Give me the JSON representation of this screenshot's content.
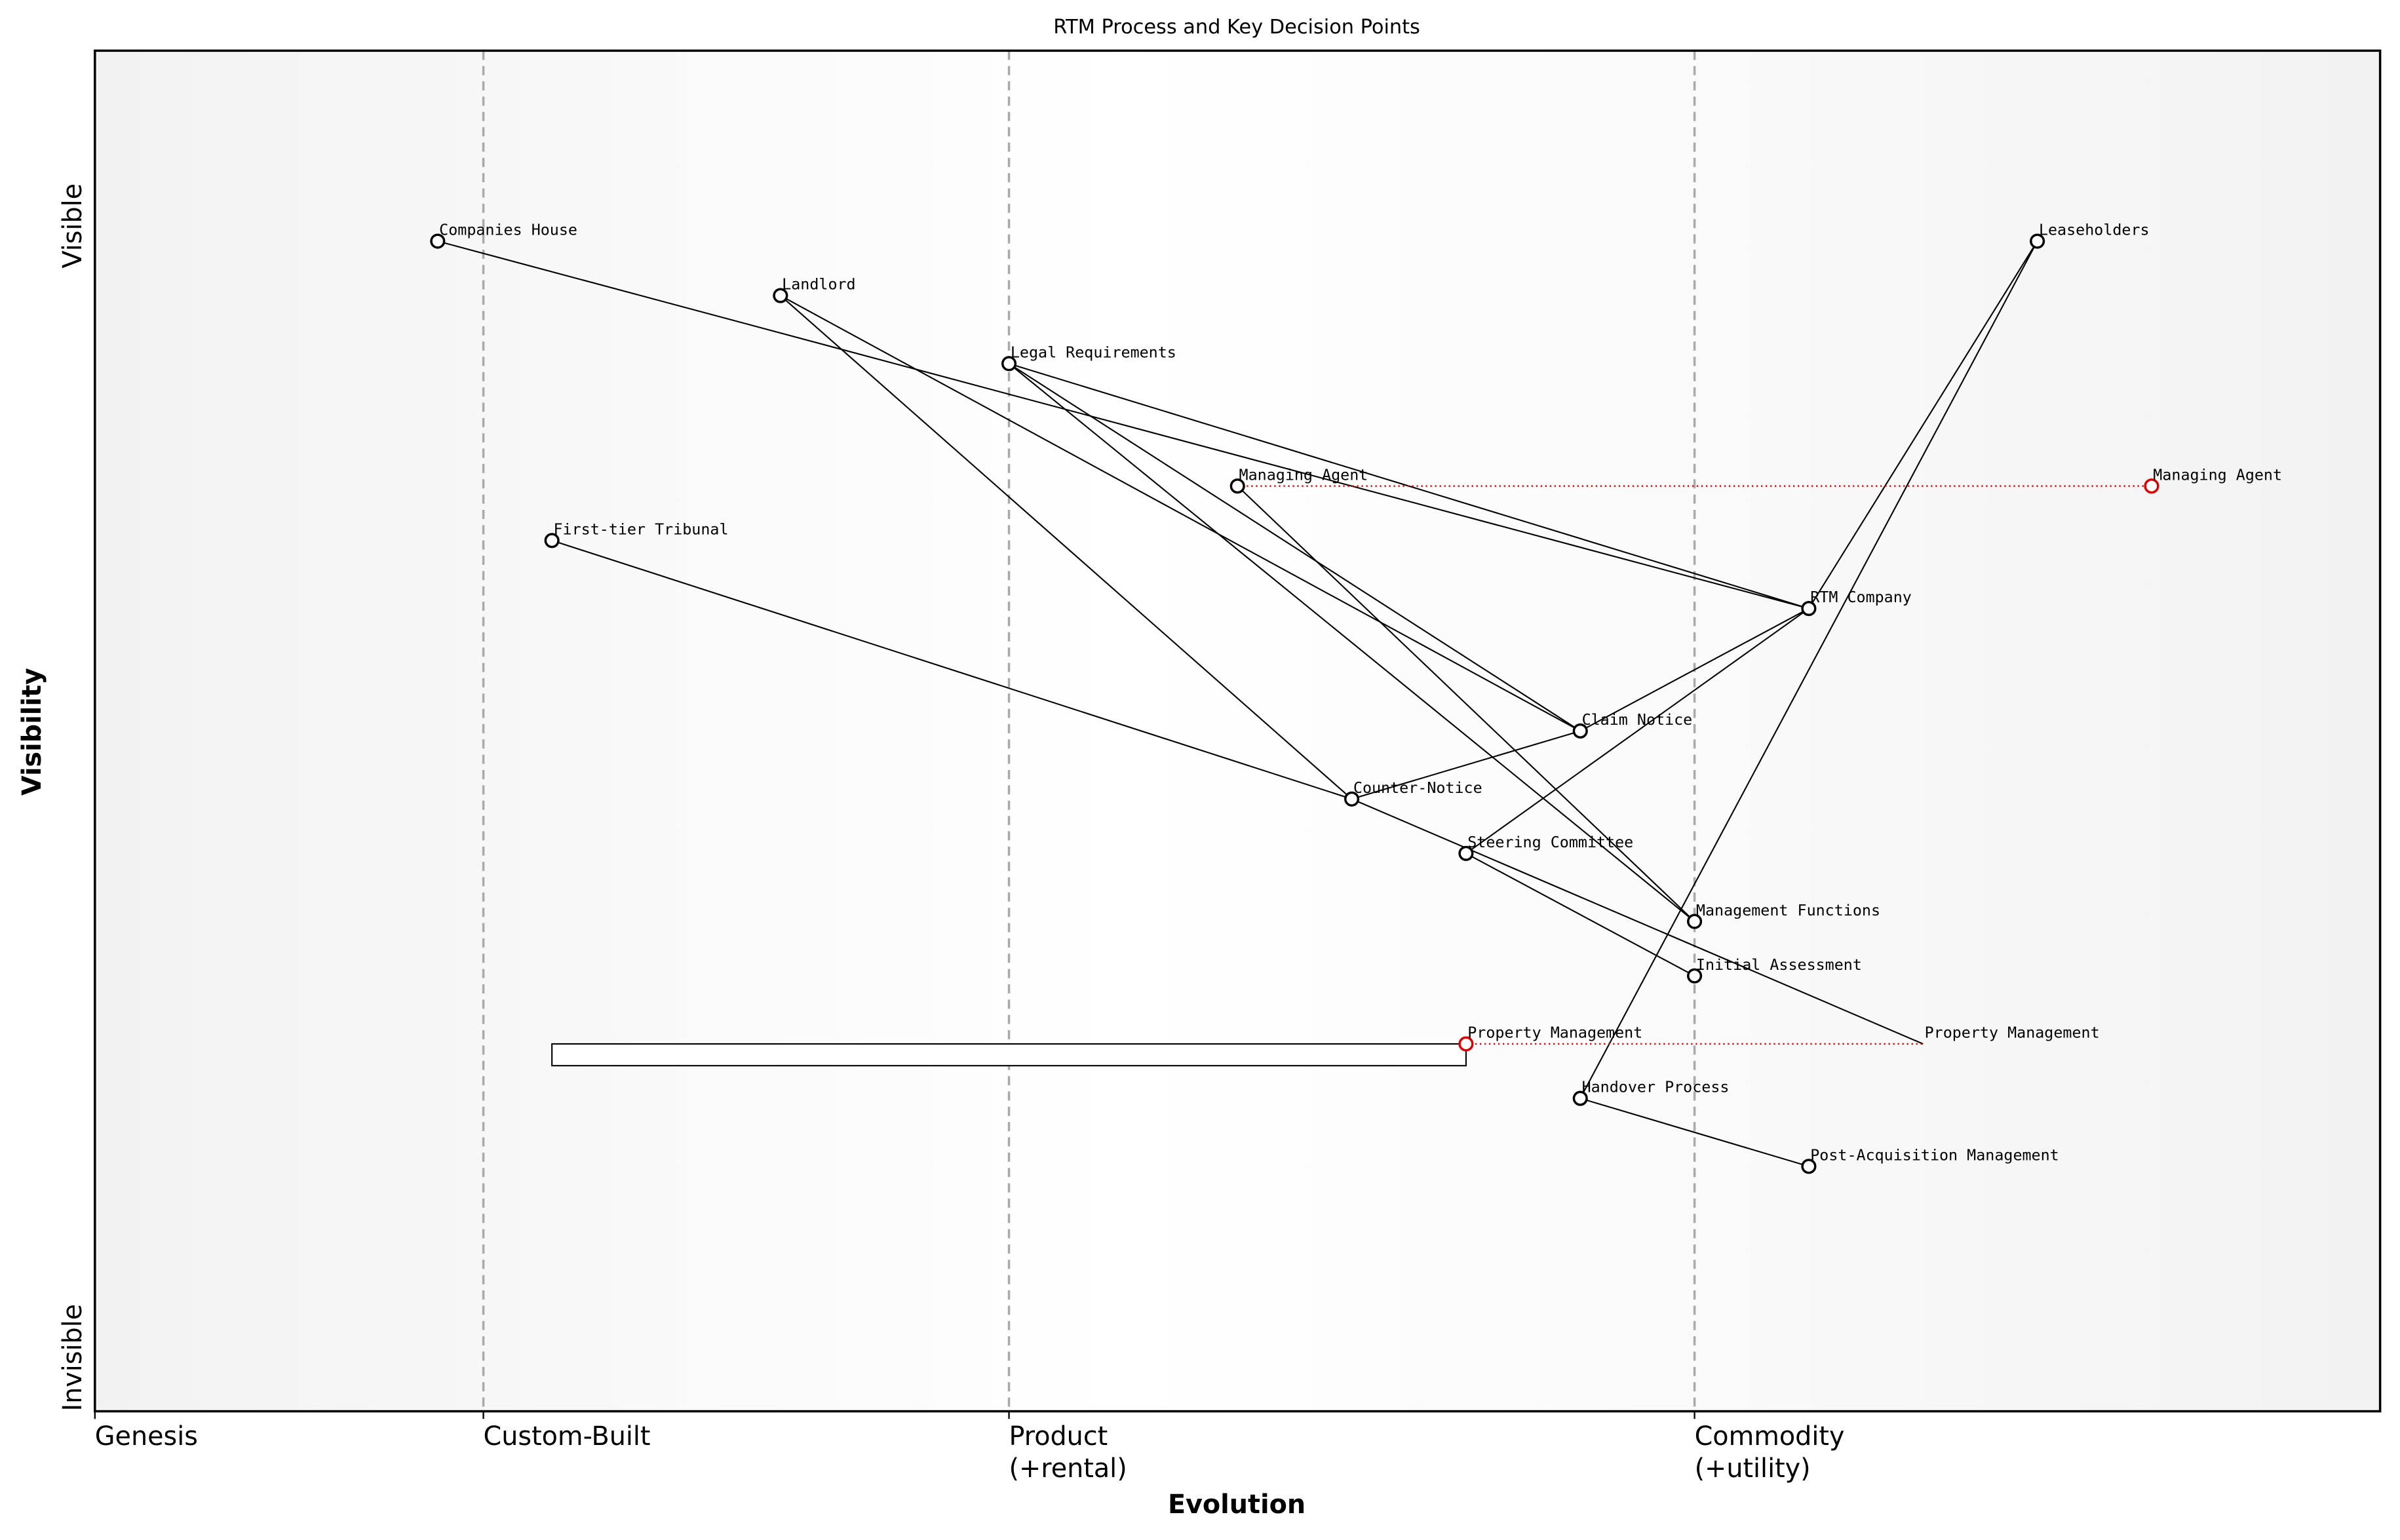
{
  "chart_data": {
    "type": "wardley",
    "title": "RTM Process and Key Decision Points",
    "xlabel": "Evolution",
    "ylabel": "Visibility",
    "xlim": [
      0,
      1
    ],
    "ylim": [
      0,
      1
    ],
    "xticks": [
      {
        "value": 0,
        "label": "Genesis"
      },
      {
        "value": 0.17,
        "label": "Custom-Built"
      },
      {
        "value": 0.4,
        "label": "Product\n(+rental)"
      },
      {
        "value": 0.7,
        "label": "Commodity\n(+utility)"
      }
    ],
    "yticks": [
      {
        "value": 0,
        "label": "Invisible"
      },
      {
        "value": 0.84,
        "label": "Visible"
      }
    ],
    "stage_lines": [
      0.17,
      0.4,
      0.7
    ],
    "components": [
      {
        "name": "Companies House",
        "x": 0.15,
        "y": 0.86,
        "color": "#000000"
      },
      {
        "name": "Landlord",
        "x": 0.3,
        "y": 0.82,
        "color": "#000000"
      },
      {
        "name": "Legal Requirements",
        "x": 0.4,
        "y": 0.77,
        "color": "#000000"
      },
      {
        "name": "Managing Agent",
        "x": 0.5,
        "y": 0.68,
        "color": "#000000"
      },
      {
        "name": "First-tier Tribunal",
        "x": 0.2,
        "y": 0.64,
        "color": "#000000"
      },
      {
        "name": "RTM Company",
        "x": 0.75,
        "y": 0.59,
        "color": "#000000"
      },
      {
        "name": "Claim Notice",
        "x": 0.65,
        "y": 0.5,
        "color": "#000000"
      },
      {
        "name": "Counter-Notice",
        "x": 0.55,
        "y": 0.45,
        "color": "#000000"
      },
      {
        "name": "Steering Committee",
        "x": 0.6,
        "y": 0.41,
        "color": "#000000"
      },
      {
        "name": "Management Functions",
        "x": 0.7,
        "y": 0.36,
        "color": "#000000"
      },
      {
        "name": "Initial Assessment",
        "x": 0.7,
        "y": 0.32,
        "color": "#000000"
      },
      {
        "name": "Property Management",
        "x": 0.6,
        "y": 0.27,
        "color": "#dd0000"
      },
      {
        "name": "Handover Process",
        "x": 0.65,
        "y": 0.23,
        "color": "#000000"
      },
      {
        "name": "Post-Acquisition Management",
        "x": 0.75,
        "y": 0.18,
        "color": "#000000"
      },
      {
        "name": "Leaseholders",
        "x": 0.85,
        "y": 0.86,
        "color": "#000000"
      }
    ],
    "evolutions": [
      {
        "name": "Managing Agent",
        "from": 0.5,
        "to": 0.9,
        "y": 0.68,
        "color": "#dd0000",
        "marker": "circle"
      },
      {
        "name": "Property Management",
        "from": 0.6,
        "to": 0.8,
        "y": 0.27,
        "color": "#dd0000",
        "marker": "none"
      }
    ],
    "links": [
      [
        "Companies House",
        "RTM Company"
      ],
      [
        "Landlord",
        "Claim Notice"
      ],
      [
        "Landlord",
        "Counter-Notice"
      ],
      [
        "Legal Requirements",
        "RTM Company"
      ],
      [
        "Legal Requirements",
        "Management Functions"
      ],
      [
        "Legal Requirements",
        "Claim Notice"
      ],
      [
        "Managing Agent",
        "Management Functions"
      ],
      [
        "First-tier Tribunal",
        "Counter-Notice"
      ],
      [
        "Counter-Notice",
        "Claim Notice"
      ],
      [
        "Claim Notice",
        "RTM Company"
      ],
      [
        "RTM Company",
        "Leaseholders"
      ],
      [
        "RTM Company",
        "Steering Committee"
      ],
      [
        "Steering Committee",
        "Initial Assessment"
      ],
      [
        "Leaseholders",
        "Handover Process"
      ],
      [
        "Handover Process",
        "Post-Acquisition Management"
      ]
    ],
    "pipelines": [
      {
        "name": "Property Management",
        "x": [
          0.2,
          0.6
        ],
        "y": [
          0.254,
          0.27
        ]
      }
    ],
    "evolved_links": [
      [
        "Counter-Notice",
        "Property Management"
      ]
    ]
  }
}
